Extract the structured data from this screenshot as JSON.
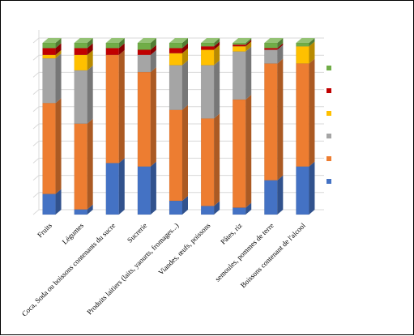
{
  "chart_data": {
    "type": "bar",
    "stacked": true,
    "three_d": true,
    "categories": [
      "Fruits",
      "Légumes",
      "Coca, Soda ou boissons contenants du sucre",
      "Sucrerie",
      "Produits laitiers (laits, yaourts, fromages...)",
      "Viandes, œufs, poissons",
      "Pâtes, riz",
      "semoules, pommes de terre",
      "Boissons contenant de l'alcool"
    ],
    "series": [
      {
        "color": "#4472c4",
        "values": [
          12,
          3,
          30,
          28,
          8,
          5,
          4,
          20,
          28
        ]
      },
      {
        "color": "#ed7d31",
        "values": [
          53,
          50,
          63,
          55,
          53,
          51,
          63,
          68,
          60
        ]
      },
      {
        "color": "#a5a5a5",
        "values": [
          26,
          31,
          0,
          10,
          26,
          31,
          28,
          8,
          0
        ]
      },
      {
        "color": "#ffc000",
        "values": [
          2,
          9,
          0,
          0,
          7,
          9,
          3,
          0,
          10
        ]
      },
      {
        "color": "#c00000",
        "values": [
          4,
          4,
          4,
          3,
          3,
          2,
          1,
          1,
          0
        ]
      },
      {
        "color": "#70ad47",
        "values": [
          3,
          3,
          3,
          4,
          3,
          2,
          1,
          3,
          2
        ]
      }
    ],
    "ylim": [
      0,
      100
    ],
    "grid": true,
    "legend": "right"
  }
}
